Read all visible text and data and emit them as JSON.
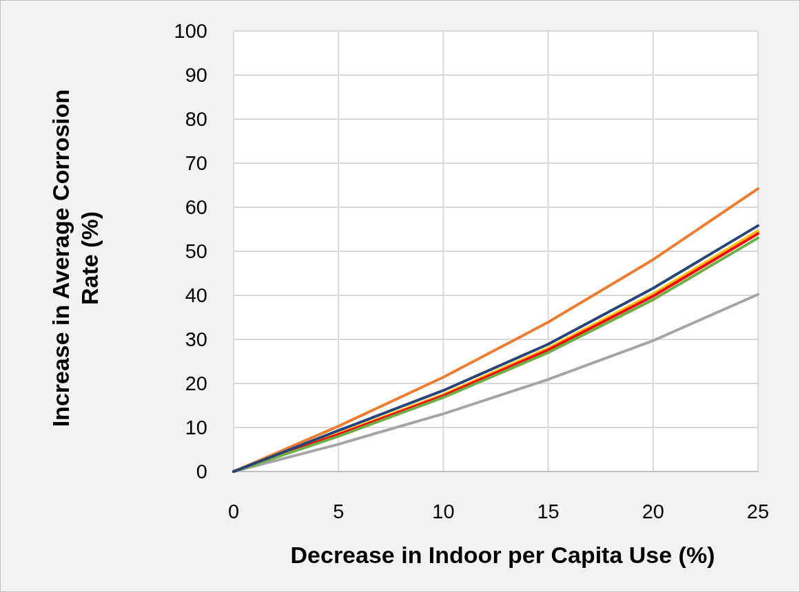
{
  "chart_data": {
    "type": "line",
    "xlabel": "Decrease in Indoor per Capita Use (%)",
    "ylabel": "Increase in Average Corrosion Rate (%)",
    "x": [
      0,
      5,
      10,
      15,
      20,
      25
    ],
    "xlim": [
      0,
      25
    ],
    "xticks": [
      0,
      5,
      10,
      15,
      20,
      25
    ],
    "ylim": [
      0,
      100
    ],
    "yticks": [
      0,
      10,
      20,
      30,
      40,
      50,
      60,
      70,
      80,
      90,
      100
    ],
    "grid": true,
    "marker": "none",
    "line_style": "solid",
    "series": [
      {
        "color": "#ed7d31",
        "values": [
          0,
          10.3,
          21.4,
          33.9,
          48.1,
          64.2
        ]
      },
      {
        "color": "#a5a5a5",
        "values": [
          0,
          6.2,
          13.1,
          20.9,
          29.7,
          40.2
        ]
      },
      {
        "color": "#ffc000",
        "values": [
          0,
          8.6,
          17.5,
          28,
          40.3,
          54.6
        ]
      },
      {
        "color": "#ff0000",
        "values": [
          0,
          8.4,
          17.2,
          27.6,
          39.8,
          54
        ]
      },
      {
        "color": "#70ad47",
        "values": [
          0,
          8,
          16.8,
          27,
          39,
          53
        ]
      },
      {
        "color": "#264478",
        "values": [
          0,
          9.3,
          18.4,
          28.9,
          41.6,
          55.8
        ]
      }
    ]
  }
}
